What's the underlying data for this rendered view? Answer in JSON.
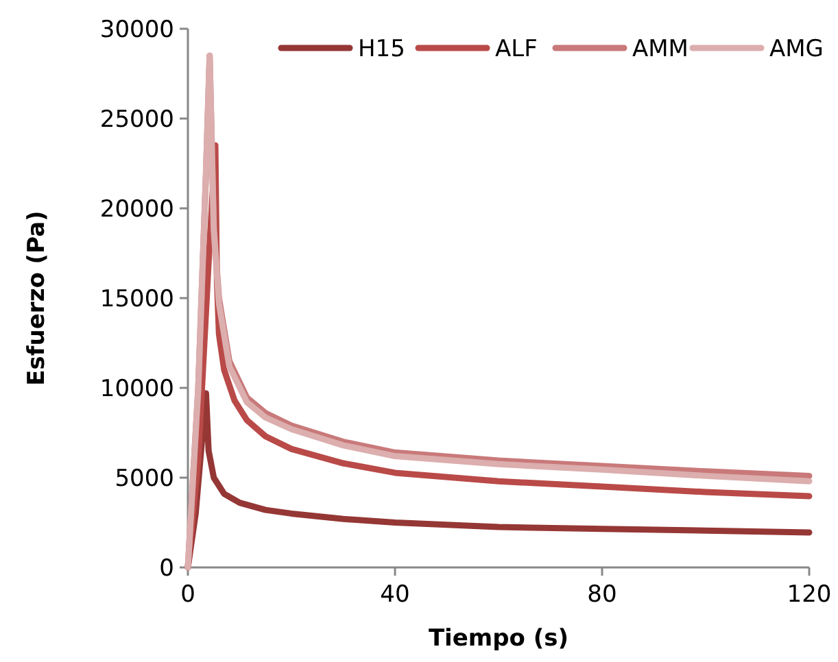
{
  "chart_data": {
    "type": "line",
    "xlabel": "Tiempo (s)",
    "ylabel": "Esfuerzo (Pa)",
    "xlim": [
      0,
      120
    ],
    "xticks": [
      0,
      40,
      80,
      120
    ],
    "ylim": [
      0,
      30000
    ],
    "yticks": [
      0,
      5000,
      10000,
      15000,
      20000,
      25000,
      30000
    ],
    "grid": false,
    "legend": "top right",
    "marker": "none",
    "line_style": "solid",
    "series": [
      {
        "name": "H15",
        "color": "#953735",
        "x": [
          0,
          1.5,
          3,
          3.5,
          4,
          5,
          7,
          10,
          15,
          20,
          30,
          40,
          60,
          80,
          100,
          120
        ],
        "values": [
          0,
          3000,
          8000,
          9700,
          6500,
          5000,
          4100,
          3600,
          3200,
          3000,
          2700,
          2500,
          2250,
          2150,
          2050,
          1950
        ]
      },
      {
        "name": "ALF",
        "color": "#b94a48",
        "x": [
          0,
          2,
          4,
          5,
          5.3,
          5.6,
          6,
          7,
          9,
          11.4,
          15,
          20,
          30,
          40,
          60,
          80,
          100,
          120
        ],
        "values": [
          0,
          6000,
          17000,
          22000,
          23500,
          16000,
          13000,
          11000,
          9300,
          8200,
          7300,
          6600,
          5800,
          5270,
          4800,
          4500,
          4200,
          3970
        ]
      },
      {
        "name": "AMM",
        "color": "#c9797a",
        "x": [
          0,
          2,
          3.5,
          4.2,
          5,
          6,
          8,
          11.4,
          15,
          20,
          30,
          40,
          60,
          80,
          100,
          120
        ],
        "values": [
          0,
          10000,
          22000,
          28500,
          19000,
          15000,
          11500,
          9460,
          8600,
          7900,
          7000,
          6400,
          5950,
          5650,
          5350,
          5100
        ]
      },
      {
        "name": "AMG",
        "color": "#dcaeae",
        "x": [
          0,
          2,
          3.5,
          4.2,
          5,
          6,
          8,
          11.4,
          15,
          20,
          30,
          40,
          60,
          80,
          100,
          120
        ],
        "values": [
          0,
          10000,
          22000,
          28500,
          18800,
          14700,
          11200,
          9200,
          8350,
          7700,
          6800,
          6200,
          5750,
          5450,
          5100,
          4800
        ]
      }
    ]
  }
}
